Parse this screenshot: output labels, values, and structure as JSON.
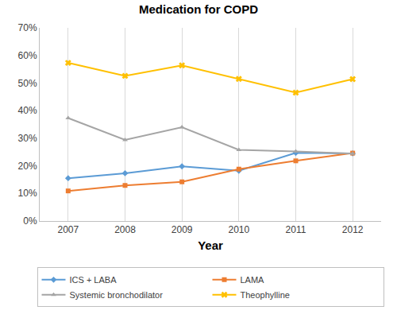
{
  "chart_data": {
    "type": "line",
    "title": "Medication for COPD",
    "x_label": "Year",
    "categories": [
      "2007",
      "2008",
      "2009",
      "2010",
      "2011",
      "2012"
    ],
    "series": [
      {
        "name": "ICS + LABA",
        "color": "#5b9bd5",
        "marker": "diamond",
        "line_style": "solid",
        "values": [
          15.5,
          17.3,
          19.8,
          18.2,
          24.7,
          24.5
        ]
      },
      {
        "name": "LAMA",
        "color": "#ed7d31",
        "marker": "square",
        "line_style": "solid",
        "values": [
          10.9,
          12.9,
          14.2,
          18.8,
          21.8,
          24.6
        ]
      },
      {
        "name": "Systemic bronchodilator",
        "color": "#a5a5a5",
        "marker": "triangle-up",
        "line_style": "solid",
        "values": [
          37.3,
          29.4,
          34.0,
          25.8,
          25.2,
          24.4
        ]
      },
      {
        "name": "Theophylline",
        "color": "#ffc000",
        "marker": "x",
        "line_style": "solid",
        "values": [
          57.3,
          52.6,
          56.4,
          51.5,
          46.5,
          51.4
        ]
      }
    ],
    "ylim": [
      0,
      70
    ],
    "yticks": [
      {
        "value": 0,
        "label": "0%"
      },
      {
        "value": 10,
        "label": "10%"
      },
      {
        "value": 20,
        "label": "20%"
      },
      {
        "value": 30,
        "label": "30%"
      },
      {
        "value": 40,
        "label": "40%"
      },
      {
        "value": 50,
        "label": "50%"
      },
      {
        "value": 60,
        "label": "60%"
      },
      {
        "value": 70,
        "label": "70%"
      }
    ],
    "grid": true,
    "legend": "bottom"
  }
}
